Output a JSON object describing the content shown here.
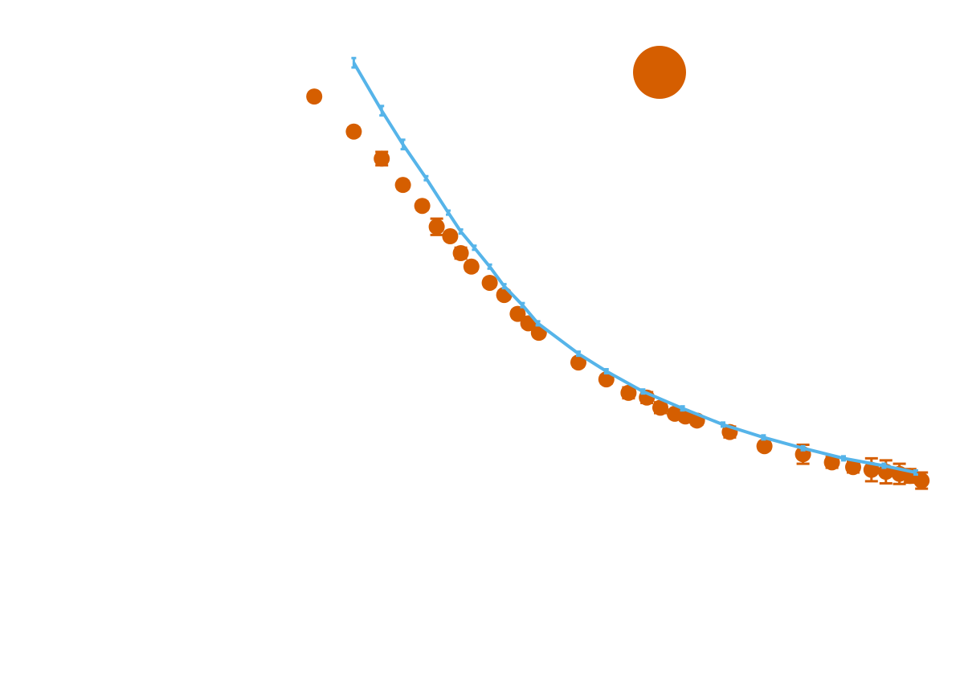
{
  "chart_data": {
    "type": "scatter",
    "xlim": [
      0,
      100
    ],
    "ylim": [
      0,
      100
    ],
    "series": [
      {
        "type": "scatter",
        "color": "#d55e00",
        "x": [
          32.6,
          36.7,
          39.6,
          41.8,
          43.8,
          45.3,
          46.7,
          47.8,
          48.9,
          50.8,
          52.3,
          53.7,
          54.8,
          55.9,
          60,
          62.9,
          65.2,
          67.1,
          68.5,
          70,
          71.1,
          72.3,
          75.7,
          79.3,
          83.3,
          86.3,
          88.5,
          90.4,
          91.9,
          93.3,
          94.4,
          95.6
        ],
        "values": [
          85.7,
          80.5,
          76.5,
          72.6,
          69.5,
          66.4,
          65,
          62.5,
          60.5,
          58.1,
          56.3,
          53.5,
          52.1,
          50.7,
          46.3,
          43.8,
          41.8,
          41.1,
          39.6,
          38.7,
          38.3,
          37.7,
          36,
          33.9,
          32.7,
          31.5,
          30.8,
          30.4,
          30.1,
          29.8,
          29.5,
          28.8
        ],
        "errors": [
          0.6,
          0.6,
          1.0,
          0.6,
          0.6,
          1.2,
          0.6,
          0.8,
          0.6,
          0.6,
          0.6,
          0.6,
          0.6,
          0.6,
          0.6,
          0.6,
          0.8,
          0.8,
          0.8,
          0.6,
          0.6,
          0.6,
          0.8,
          0.6,
          1.4,
          0.8,
          0.8,
          1.7,
          1.7,
          1.5,
          1.0,
          1.2
        ]
      },
      {
        "type": "line",
        "color": "#56b4e9",
        "x": [
          36.7,
          39.6,
          41.8,
          44.2,
          46.5,
          47.8,
          49.2,
          50.8,
          52.3,
          54.2,
          55.8,
          60,
          62.9,
          66.7,
          70.8,
          75,
          79.2,
          83.3,
          87.5,
          91.7,
          95
        ],
        "values": [
          90.7,
          83.6,
          78.6,
          73.6,
          68.5,
          65.7,
          63.3,
          60.5,
          57.6,
          54.8,
          52.1,
          47.6,
          45,
          42,
          39.5,
          37.1,
          35.2,
          33.6,
          32.1,
          31,
          30
        ],
        "errors": [
          0.7,
          0.7,
          0.7,
          0.3,
          0.3,
          0.3,
          0.3,
          0.3,
          0.3,
          0.3,
          0.3,
          0.3,
          0.3,
          0.3,
          0.3,
          0.3,
          0.3,
          0.3,
          0.3,
          0.3,
          0.3
        ]
      }
    ]
  }
}
